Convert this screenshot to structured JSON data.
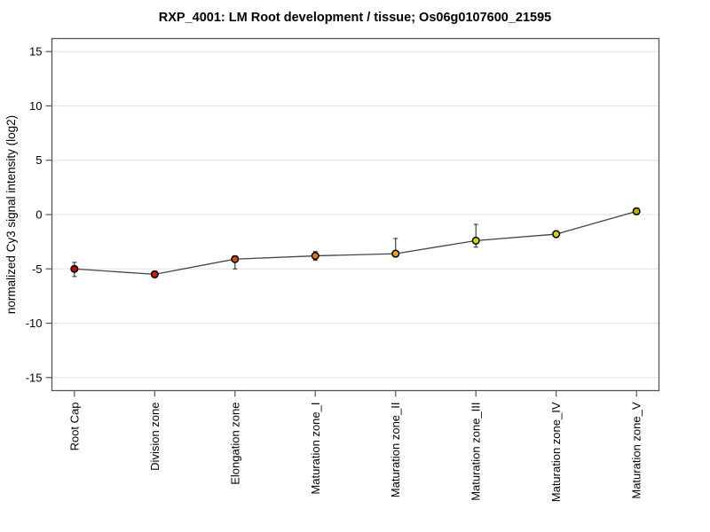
{
  "chart_data": {
    "type": "line",
    "title": "RXP_4001: LM Root development / tissue; Os06g0107600_21595",
    "xlabel": "",
    "ylabel": "normalized Cy3 signal intensity (log2)",
    "categories": [
      "Root Cap",
      "Division zone",
      "Elongation zone",
      "Maturation zone_I",
      "Maturation zone_II",
      "Maturation zone_III",
      "Maturation zone_IV",
      "Maturation zone_V"
    ],
    "values": [
      -5.0,
      -5.5,
      -4.1,
      -3.8,
      -3.6,
      -2.4,
      -1.8,
      0.3
    ],
    "error_up": [
      0.6,
      0.3,
      0.3,
      0.4,
      1.4,
      1.5,
      0.3,
      0.3
    ],
    "error_down": [
      0.7,
      0.3,
      0.9,
      0.4,
      0.3,
      0.6,
      0.3,
      0.3
    ],
    "point_colors": [
      "#c00000",
      "#d01800",
      "#dd4400",
      "#e87800",
      "#e6a800",
      "#d4d400",
      "#d4d400",
      "#b4b400"
    ],
    "y_ticks": [
      -15,
      -10,
      -5,
      0,
      5,
      10,
      15
    ],
    "ylim": [
      -16.2,
      16.2
    ],
    "grid": true,
    "legend": "none",
    "line_color": "#444444",
    "error_bar_color": "#333333",
    "marker_outline": "#000000",
    "grid_color": "#e6e6e6",
    "axis_color": "#555555"
  }
}
